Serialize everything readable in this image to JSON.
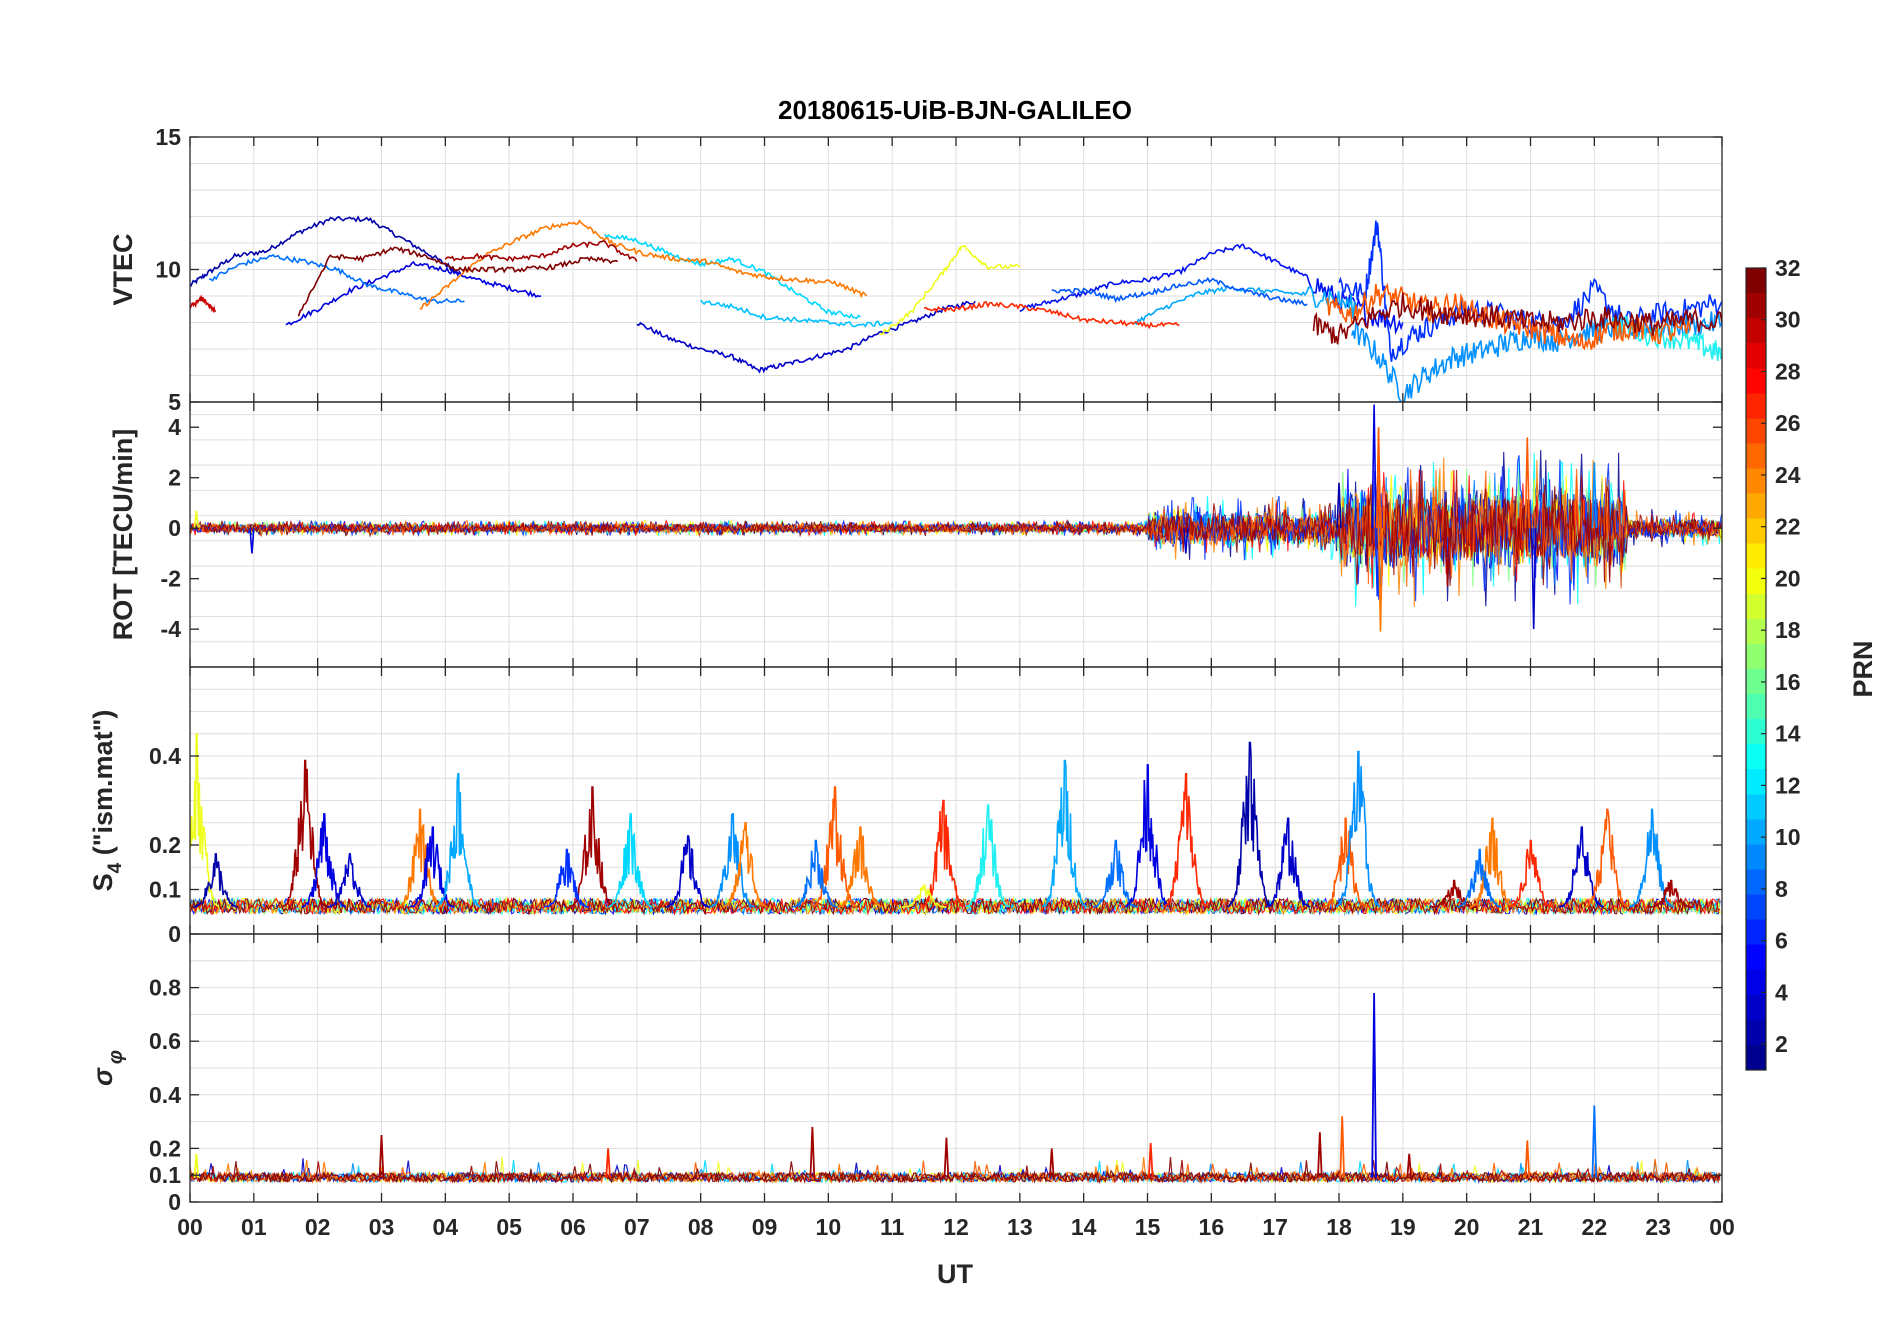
{
  "chart_data": {
    "type": "line",
    "title": "20180615-UiB-BJN-GALILEO",
    "xlabel": "UT",
    "x_unit": "hours UT",
    "x_ticks": [
      "00",
      "01",
      "02",
      "03",
      "04",
      "05",
      "06",
      "07",
      "08",
      "09",
      "10",
      "11",
      "12",
      "13",
      "14",
      "15",
      "16",
      "17",
      "18",
      "19",
      "20",
      "21",
      "22",
      "23",
      "00"
    ],
    "xlim": [
      0,
      24
    ],
    "grid": true,
    "colorbar": {
      "label": "PRN",
      "colormap": "jet",
      "range": [
        1,
        32
      ],
      "ticks": [
        2,
        4,
        6,
        8,
        10,
        12,
        14,
        16,
        18,
        20,
        22,
        24,
        26,
        28,
        30,
        32
      ],
      "colors": [
        "#00008f",
        "#0000ff",
        "#0080ff",
        "#00ffff",
        "#80ff80",
        "#ffff00",
        "#ff8000",
        "#ff0000",
        "#800000"
      ]
    },
    "panels": [
      {
        "id": "vtec",
        "ylabel": "VTEC",
        "ylim": [
          5,
          15
        ],
        "yticks": [
          5,
          10,
          15
        ],
        "series": [
          {
            "prn": 1,
            "color": "#0000a8",
            "x": [
              0.0,
              0.3,
              0.7,
              1.2,
              1.7,
              2.2,
              2.8,
              3.3,
              3.8,
              4.2
            ],
            "y": [
              9.4,
              9.9,
              10.5,
              10.7,
              11.4,
              11.9,
              11.9,
              11.2,
              10.5,
              9.9
            ]
          },
          {
            "prn": 2,
            "color": "#0000c8",
            "x": [
              7.0,
              7.5,
              8.0,
              8.5,
              8.9,
              9.3,
              9.8,
              10.3,
              10.8,
              11.3,
              11.8,
              12.3
            ],
            "y": [
              8.0,
              7.4,
              7.0,
              6.7,
              6.2,
              6.4,
              6.7,
              7.0,
              7.6,
              8.0,
              8.5,
              8.8
            ]
          },
          {
            "prn": 3,
            "color": "#0000e0",
            "x": [
              1.5,
              2.0,
              2.5,
              3.0,
              3.5,
              4.0,
              4.5,
              5.0,
              5.5
            ],
            "y": [
              7.9,
              8.5,
              9.2,
              9.7,
              10.2,
              10.0,
              9.6,
              9.3,
              9.0
            ]
          },
          {
            "prn": 4,
            "color": "#0010f0",
            "x": [
              13.0,
              13.5,
              14.0,
              14.5,
              15.0,
              15.5,
              16.0,
              16.5,
              17.0,
              17.5,
              18.0,
              18.5,
              19.0
            ],
            "y": [
              8.5,
              8.8,
              9.1,
              9.5,
              9.6,
              9.9,
              10.6,
              10.9,
              10.3,
              9.7,
              8.8,
              8.3,
              8.0
            ]
          },
          {
            "prn": 5,
            "color": "#0030ff",
            "x": [
              18.0,
              18.4,
              18.6,
              18.8,
              19.2,
              19.6,
              20.0,
              20.5,
              21.0,
              21.5,
              22.0,
              22.5,
              23.0,
              23.5,
              24.0
            ],
            "y": [
              9.5,
              9.0,
              11.8,
              6.9,
              7.6,
              8.1,
              8.5,
              8.3,
              8.0,
              8.0,
              9.2,
              8.0,
              8.3,
              8.5,
              8.8
            ]
          },
          {
            "prn": 8,
            "color": "#0070ff",
            "x": [
              0.3,
              0.8,
              1.3,
              1.8,
              2.3,
              2.8,
              3.3,
              3.8,
              4.3
            ],
            "y": [
              9.6,
              10.2,
              10.5,
              10.3,
              10.0,
              9.4,
              9.1,
              8.8,
              8.8
            ]
          },
          {
            "prn": 9,
            "color": "#0090ff",
            "x": [
              18.2,
              18.6,
              19.0,
              19.4,
              19.8,
              20.2,
              20.6,
              21.0,
              21.4,
              21.8,
              22.2,
              22.6,
              23.0,
              23.5,
              24.0
            ],
            "y": [
              7.8,
              6.8,
              5.3,
              6.1,
              6.7,
              6.9,
              7.2,
              7.5,
              7.3,
              7.6,
              7.8,
              7.7,
              7.8,
              7.9,
              8.0
            ]
          },
          {
            "prn": 10,
            "color": "#00a8ff",
            "x": [
              14.8,
              15.3,
              15.8,
              16.3,
              16.8,
              17.3,
              17.8,
              18.3
            ],
            "y": [
              8.0,
              8.6,
              9.1,
              9.3,
              9.2,
              9.1,
              9.0,
              8.5
            ]
          },
          {
            "prn": 12,
            "color": "#00d8ff",
            "x": [
              6.5,
              7.0,
              7.5,
              8.0,
              8.5,
              9.0,
              9.5,
              10.0,
              10.5
            ],
            "y": [
              11.3,
              11.1,
              10.6,
              10.2,
              10.4,
              9.9,
              9.1,
              8.4,
              8.2
            ]
          },
          {
            "prn": 13,
            "color": "#20f0f0",
            "x": [
              22.3,
              22.8,
              23.3,
              23.7,
              24.0
            ],
            "y": [
              7.9,
              7.6,
              7.4,
              7.1,
              6.8
            ]
          },
          {
            "prn": 20,
            "color": "#eeff20",
            "x": [
              10.8,
              11.3,
              11.8,
              12.1,
              12.5,
              13.0
            ],
            "y": [
              7.5,
              8.4,
              9.9,
              10.9,
              10.1,
              10.1
            ]
          },
          {
            "prn": 24,
            "color": "#ff7800",
            "x": [
              3.6,
              4.1,
              4.6,
              5.1,
              5.6,
              6.1,
              6.6,
              7.1,
              7.6,
              8.1,
              8.6,
              9.1,
              9.6,
              10.1,
              10.6
            ],
            "y": [
              8.5,
              9.5,
              10.5,
              11.1,
              11.6,
              11.8,
              11.0,
              10.6,
              10.4,
              10.3,
              9.9,
              9.7,
              9.6,
              9.5,
              9.0
            ]
          },
          {
            "prn": 25,
            "color": "#ff5a00",
            "x": [
              17.8,
              18.2,
              18.6,
              19.0,
              19.4,
              19.8,
              20.2,
              20.6,
              21.0,
              21.4,
              21.8,
              22.2,
              22.6,
              23.0,
              23.5
            ],
            "y": [
              8.6,
              8.3,
              9.1,
              8.9,
              8.5,
              8.7,
              8.3,
              8.0,
              7.8,
              7.5,
              7.2,
              7.7,
              7.8,
              7.6,
              7.7
            ]
          },
          {
            "prn": 27,
            "color": "#ff2800",
            "x": [
              11.5,
              12.0,
              12.5,
              13.0,
              13.5,
              14.0,
              14.5,
              15.0,
              15.5
            ],
            "y": [
              8.5,
              8.5,
              8.7,
              8.6,
              8.4,
              8.1,
              8.0,
              7.9,
              7.9
            ]
          },
          {
            "prn": 30,
            "color": "#c80000",
            "x": [
              0.0,
              0.2,
              0.4
            ],
            "y": [
              8.6,
              8.9,
              8.4
            ]
          },
          {
            "prn": 31,
            "color": "#a00000",
            "x": [
              4.0,
              4.5,
              5.0,
              5.5,
              6.0,
              6.5,
              7.0
            ],
            "y": [
              10.4,
              10.5,
              10.4,
              10.5,
              10.9,
              11.0,
              10.3
            ]
          },
          {
            "prn": 32,
            "color": "#800000",
            "x": [
              1.7,
              2.2,
              2.7,
              3.2,
              3.7,
              4.2,
              4.7,
              5.2,
              5.7,
              6.2,
              6.7
            ],
            "y": [
              8.3,
              10.5,
              10.4,
              10.8,
              10.5,
              10.0,
              10.0,
              10.0,
              10.1,
              10.4,
              10.3
            ]
          },
          {
            "prn": 29,
            "color": "#8a0000",
            "x": [
              17.6,
              18.0,
              18.5,
              19.0,
              19.5,
              20.0,
              20.5,
              21.0,
              21.5,
              22.0,
              22.5,
              23.0,
              23.5,
              24.0
            ],
            "y": [
              7.9,
              7.5,
              8.2,
              8.7,
              8.4,
              8.3,
              8.2,
              8.0,
              8.0,
              8.2,
              8.1,
              7.9,
              8.1,
              8.0
            ]
          },
          {
            "prn": 7,
            "color": "#0058ff",
            "x": [
              13.5,
              14.0,
              14.5,
              15.0,
              15.5,
              16.0,
              16.5,
              17.0,
              17.5
            ],
            "y": [
              9.2,
              9.2,
              8.9,
              9.1,
              9.4,
              9.6,
              9.2,
              8.9,
              8.7
            ]
          },
          {
            "prn": 14,
            "color": "#00c0ff",
            "x": [
              8.0,
              8.5,
              9.0,
              9.5,
              10.0,
              10.5,
              11.0
            ],
            "y": [
              8.8,
              8.6,
              8.2,
              8.1,
              8.0,
              7.9,
              8.0
            ]
          }
        ]
      },
      {
        "id": "rot",
        "ylabel": "ROT [TECU/min]",
        "ylim": [
          -5.5,
          5
        ],
        "yticks": [
          -4,
          -2,
          0,
          2,
          4
        ],
        "noise_level": [
          {
            "from": 0,
            "to": 15,
            "amplitude": 0.15
          },
          {
            "from": 15,
            "to": 18,
            "amplitude": 0.5
          },
          {
            "from": 18,
            "to": 22.5,
            "amplitude": 1.2
          },
          {
            "from": 22.5,
            "to": 24,
            "amplitude": 0.3
          }
        ],
        "spikes": [
          {
            "x": 18.55,
            "y": 4.9,
            "color": "#0000e0"
          },
          {
            "x": 18.6,
            "y": -2.7,
            "color": "#0030ff"
          },
          {
            "x": 18.65,
            "y": -4.1,
            "color": "#ff7800"
          },
          {
            "x": 18.62,
            "y": 4.0,
            "color": "#ff5a00"
          },
          {
            "x": 20.95,
            "y": 3.6,
            "color": "#ff5a00"
          },
          {
            "x": 21.05,
            "y": -4.0,
            "color": "#0000c8"
          },
          {
            "x": 22.0,
            "y": 2.6,
            "color": "#0090ff"
          },
          {
            "x": 19.7,
            "y": -2.3,
            "color": "#a00000"
          },
          {
            "x": 18.0,
            "y": 1.8,
            "color": "#0000a8"
          },
          {
            "x": 0.97,
            "y": -1.0,
            "color": "#0000e0"
          },
          {
            "x": 15.6,
            "y": -1.0,
            "color": "#0000c8"
          },
          {
            "x": 0.1,
            "y": 0.7,
            "color": "#eeff20"
          },
          {
            "x": 24.0,
            "y": -0.6,
            "color": "#eeff20"
          }
        ]
      },
      {
        "id": "s4",
        "ylabel": "S4 (\"ism.mat\")",
        "ylim": [
          0,
          0.6
        ],
        "yticks": [
          0,
          0.1,
          0.2,
          0.4
        ],
        "base_level": 0.06,
        "bursts": [
          {
            "x": 0.1,
            "peak": 0.45,
            "color": "#eeff20"
          },
          {
            "x": 0.4,
            "peak": 0.18,
            "color": "#0000a8"
          },
          {
            "x": 1.8,
            "peak": 0.39,
            "color": "#a00000"
          },
          {
            "x": 2.1,
            "peak": 0.27,
            "color": "#0000e0"
          },
          {
            "x": 2.5,
            "peak": 0.18,
            "color": "#0000c8"
          },
          {
            "x": 3.6,
            "peak": 0.28,
            "color": "#ff7800"
          },
          {
            "x": 3.8,
            "peak": 0.24,
            "color": "#0000e0"
          },
          {
            "x": 4.2,
            "peak": 0.36,
            "color": "#00a8ff"
          },
          {
            "x": 6.3,
            "peak": 0.33,
            "color": "#a00000"
          },
          {
            "x": 5.9,
            "peak": 0.19,
            "color": "#0030ff"
          },
          {
            "x": 6.9,
            "peak": 0.27,
            "color": "#00d8ff"
          },
          {
            "x": 7.8,
            "peak": 0.22,
            "color": "#0000c8"
          },
          {
            "x": 8.5,
            "peak": 0.27,
            "color": "#0090ff"
          },
          {
            "x": 8.7,
            "peak": 0.25,
            "color": "#ff7800"
          },
          {
            "x": 10.1,
            "peak": 0.33,
            "color": "#ff5a00"
          },
          {
            "x": 9.8,
            "peak": 0.21,
            "color": "#0070ff"
          },
          {
            "x": 10.5,
            "peak": 0.24,
            "color": "#ff7800"
          },
          {
            "x": 11.8,
            "peak": 0.3,
            "color": "#ff2800"
          },
          {
            "x": 12.5,
            "peak": 0.29,
            "color": "#20f0f0"
          },
          {
            "x": 11.5,
            "peak": 0.11,
            "color": "#eeff20"
          },
          {
            "x": 13.7,
            "peak": 0.39,
            "color": "#00a8ff"
          },
          {
            "x": 14.5,
            "peak": 0.21,
            "color": "#0070ff"
          },
          {
            "x": 15.0,
            "peak": 0.38,
            "color": "#0000e0"
          },
          {
            "x": 15.6,
            "peak": 0.36,
            "color": "#ff2800"
          },
          {
            "x": 16.6,
            "peak": 0.43,
            "color": "#0000a8"
          },
          {
            "x": 17.2,
            "peak": 0.26,
            "color": "#0000c8"
          },
          {
            "x": 18.1,
            "peak": 0.26,
            "color": "#ff5a00"
          },
          {
            "x": 18.3,
            "peak": 0.41,
            "color": "#0090ff"
          },
          {
            "x": 19.8,
            "peak": 0.12,
            "color": "#a00000"
          },
          {
            "x": 20.4,
            "peak": 0.26,
            "color": "#ff7800"
          },
          {
            "x": 20.2,
            "peak": 0.19,
            "color": "#0070ff"
          },
          {
            "x": 21.0,
            "peak": 0.21,
            "color": "#ff2800"
          },
          {
            "x": 21.8,
            "peak": 0.24,
            "color": "#0000c8"
          },
          {
            "x": 22.2,
            "peak": 0.28,
            "color": "#ff5a00"
          },
          {
            "x": 22.9,
            "peak": 0.28,
            "color": "#0090ff"
          },
          {
            "x": 23.2,
            "peak": 0.12,
            "color": "#a00000"
          }
        ]
      },
      {
        "id": "sigma_phi",
        "ylabel": "σ_φ",
        "ylim": [
          0,
          1
        ],
        "yticks": [
          0,
          0.1,
          0.2,
          0.4,
          0.6,
          0.8
        ],
        "base_level": 0.09,
        "spikes": [
          {
            "x": 18.55,
            "y": 0.78,
            "color": "#0000e0"
          },
          {
            "x": 22.0,
            "y": 0.36,
            "color": "#0070ff"
          },
          {
            "x": 18.05,
            "y": 0.32,
            "color": "#ff5a00"
          },
          {
            "x": 17.7,
            "y": 0.26,
            "color": "#a00000"
          },
          {
            "x": 9.75,
            "y": 0.28,
            "color": "#a00000"
          },
          {
            "x": 3.0,
            "y": 0.25,
            "color": "#a00000"
          },
          {
            "x": 11.85,
            "y": 0.24,
            "color": "#a00000"
          },
          {
            "x": 20.95,
            "y": 0.23,
            "color": "#ff5a00"
          },
          {
            "x": 6.55,
            "y": 0.2,
            "color": "#ff2800"
          },
          {
            "x": 15.05,
            "y": 0.22,
            "color": "#ff2800"
          },
          {
            "x": 13.5,
            "y": 0.2,
            "color": "#a00000"
          },
          {
            "x": 0.1,
            "y": 0.18,
            "color": "#eeff20"
          },
          {
            "x": 19.1,
            "y": 0.18,
            "color": "#a00000"
          }
        ]
      }
    ]
  }
}
